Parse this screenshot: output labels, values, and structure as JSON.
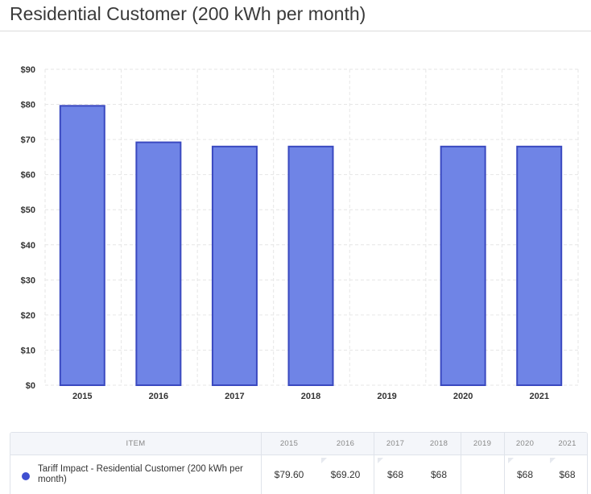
{
  "title": "Residential Customer (200 kWh per month)",
  "chart_data": {
    "type": "bar",
    "categories": [
      "2015",
      "2016",
      "2017",
      "2018",
      "2019",
      "2020",
      "2021"
    ],
    "series": [
      {
        "values": [
          79.6,
          69.2,
          68,
          68,
          null,
          68,
          68
        ]
      }
    ],
    "ylim": [
      0,
      90
    ],
    "yticks": [
      0,
      10,
      20,
      30,
      40,
      50,
      60,
      70,
      80,
      90
    ],
    "ytick_labels": [
      "$0",
      "$10",
      "$20",
      "$30",
      "$40",
      "$50",
      "$60",
      "$70",
      "$80",
      "$90"
    ],
    "grid": true,
    "colors": {
      "bar_fill": "#6f84e6",
      "bar_stroke": "#3a49c0",
      "grid": "#e6e6e6"
    }
  },
  "table": {
    "header_item": "ITEM",
    "years": [
      "2015",
      "2016",
      "2017",
      "2018",
      "2019",
      "2020",
      "2021"
    ],
    "row": {
      "label": "Tariff Impact - Residential Customer (200 kWh per month)",
      "values": [
        "$79.60",
        "$69.20",
        "$68",
        "$68",
        "",
        "$68",
        "$68"
      ],
      "color": "#3f4fd0"
    }
  }
}
